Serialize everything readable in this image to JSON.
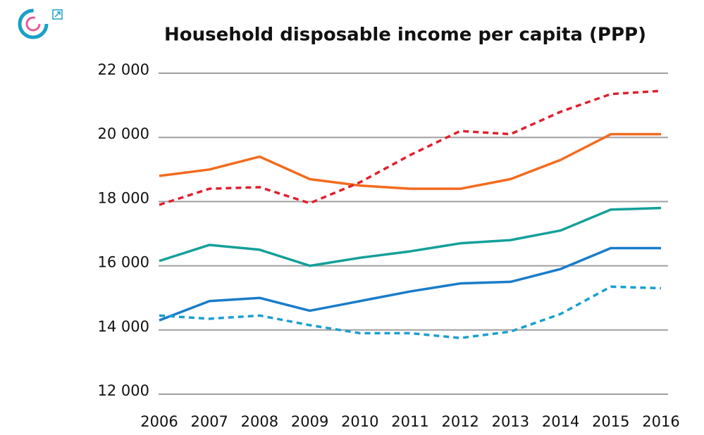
{
  "chart_data": {
    "type": "line",
    "title": "Household disposable income per capita (PPP)",
    "categories": [
      "2006",
      "2007",
      "2008",
      "2009",
      "2010",
      "2011",
      "2012",
      "2013",
      "2014",
      "2015",
      "2016"
    ],
    "series": [
      {
        "color": "#f26b1d",
        "dash": false,
        "values": [
          18800,
          19000,
          19400,
          18700,
          18500,
          18400,
          18400,
          18700,
          19300,
          20100,
          20100
        ]
      },
      {
        "color": "#e0202e",
        "dash": true,
        "values": [
          17900,
          18400,
          18450,
          17950,
          18600,
          19450,
          20200,
          20100,
          20800,
          21350,
          21450
        ]
      },
      {
        "color": "#14a09a",
        "dash": false,
        "values": [
          16150,
          16650,
          16500,
          16000,
          16250,
          16450,
          16700,
          16800,
          17100,
          17750,
          17800
        ]
      },
      {
        "color": "#1a7cc8",
        "dash": false,
        "values": [
          14300,
          14900,
          15000,
          14600,
          14900,
          15200,
          15450,
          15500,
          15900,
          16550,
          16550
        ]
      },
      {
        "color": "#1a9fd0",
        "dash": true,
        "values": [
          14450,
          14350,
          14450,
          14150,
          13900,
          13900,
          13750,
          13950,
          14500,
          15350,
          15300
        ]
      }
    ],
    "ylim": [
      12000,
      22000
    ],
    "yticks": [
      {
        "value": 12000,
        "label": "12 000"
      },
      {
        "value": 14000,
        "label": "14 000"
      },
      {
        "value": 16000,
        "label": "16 000"
      },
      {
        "value": 18000,
        "label": "18 000"
      },
      {
        "value": 20000,
        "label": "20 000"
      },
      {
        "value": 22000,
        "label": "22 000"
      }
    ],
    "grid": true
  }
}
